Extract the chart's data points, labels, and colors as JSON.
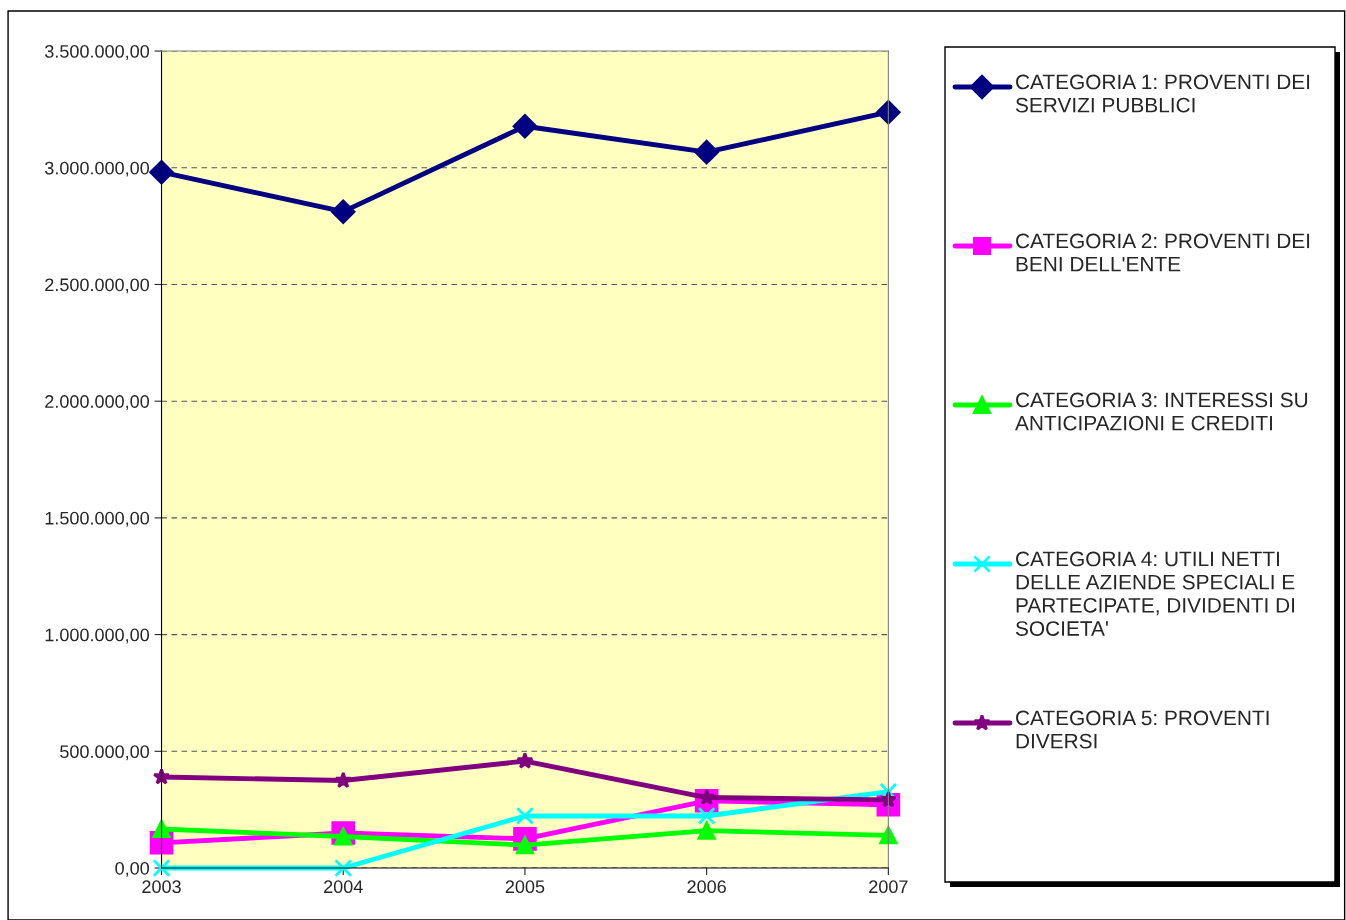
{
  "chart_data": {
    "type": "line",
    "categories": [
      "2003",
      "2004",
      "2005",
      "2006",
      "2007"
    ],
    "series": [
      {
        "name": "CATEGORIA 1: PROVENTI DEI SERVIZI PUBBLICI",
        "color": "#000080",
        "marker": "diamond",
        "values": [
          2981000,
          2812000,
          3178000,
          3067000,
          3238000
        ]
      },
      {
        "name": "CATEGORIA 2: PROVENTI DEI BENI DELL'ENTE",
        "color": "#ff00ff",
        "marker": "square",
        "values": [
          108000,
          150000,
          125000,
          288000,
          271000
        ]
      },
      {
        "name": "CATEGORIA 3: INTERESSI SU ANTICIPAZIONI E CREDITI",
        "color": "#00ff00",
        "marker": "triangle",
        "values": [
          167000,
          135000,
          98000,
          160000,
          140000
        ]
      },
      {
        "name": "CATEGORIA 4: UTILI NETTI DELLE AZIENDE SPECIALI E PARTECIPATE, DIVIDENTI DI SOCIETA'",
        "color": "#00ffff",
        "marker": "cross",
        "values": [
          0,
          0,
          223000,
          223000,
          327000
        ]
      },
      {
        "name": "CATEGORIA 5: PROVENTI DIVERSI",
        "color": "#800080",
        "marker": "star",
        "values": [
          390000,
          375000,
          458000,
          302000,
          292000
        ]
      }
    ],
    "ylim": [
      0,
      3500000
    ],
    "yticks": [
      {
        "value": 0,
        "label": "0,00"
      },
      {
        "value": 500000,
        "label": "500.000,00"
      },
      {
        "value": 1000000,
        "label": "1.000.000,00"
      },
      {
        "value": 1500000,
        "label": "1.500.000,00"
      },
      {
        "value": 2000000,
        "label": "2.000.000,00"
      },
      {
        "value": 2500000,
        "label": "2.500.000,00"
      },
      {
        "value": 3000000,
        "label": "3.000.000,00"
      },
      {
        "value": 3500000,
        "label": "3.500.000,00"
      }
    ],
    "grid": "y",
    "legend": "right",
    "line_style": "solid"
  }
}
